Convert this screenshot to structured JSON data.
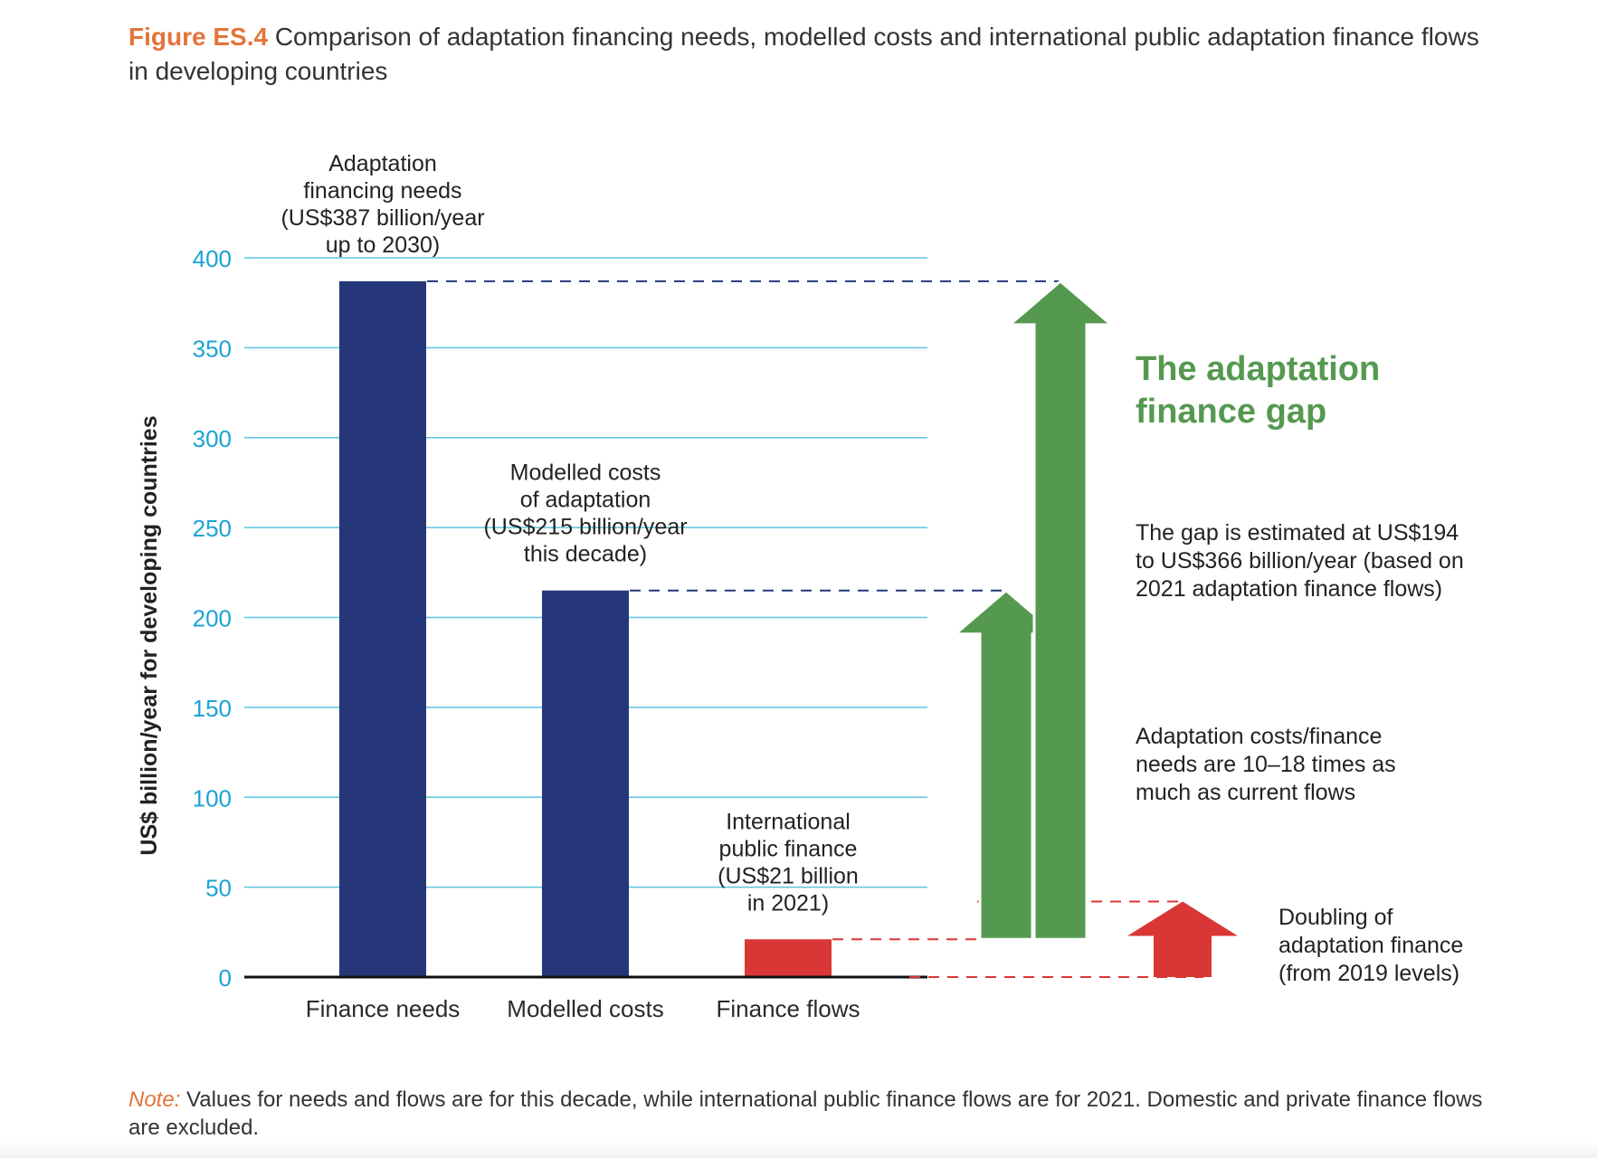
{
  "figure": {
    "label": "Figure ES.4",
    "title": "Comparison of adaptation financing needs, modelled costs and international public adaptation finance flows in developing countries"
  },
  "note": {
    "label": "Note:",
    "text": "Values for needs and flows are for this decade, while international public finance flows are for 2021. Domestic and private finance flows are excluded."
  },
  "colors": {
    "navy": "#263779",
    "red": "#d93636",
    "green": "#559950",
    "grid": "#5ec3e2",
    "tick": "#1aa3d6",
    "orange": "#e3743a"
  },
  "chart_data": {
    "type": "bar",
    "ylabel": "US$ billion/year for developing countries",
    "ylim": [
      0,
      400
    ],
    "yticks": [
      0,
      50,
      100,
      150,
      200,
      250,
      300,
      350,
      400
    ],
    "grid": true,
    "categories": [
      "Finance needs",
      "Modelled costs",
      "Finance flows"
    ],
    "values": [
      387,
      215,
      21
    ],
    "bar_colors": [
      "navy",
      "navy",
      "red"
    ],
    "bar_labels": [
      [
        "Adaptation",
        "financing needs",
        "(US$387 billion/year",
        "up to 2030)"
      ],
      [
        "Modelled costs",
        "of adaptation",
        "(US$215 billion/year",
        "this decade)"
      ],
      [
        "International",
        "public finance",
        "(US$21 billion",
        "in 2021)"
      ]
    ],
    "gap_arrows": {
      "low": [
        21,
        215
      ],
      "high": [
        21,
        387
      ]
    },
    "doubling": {
      "from": 0,
      "to": 42,
      "label": [
        "Doubling of",
        "adaptation finance",
        "(from 2019 levels)"
      ]
    },
    "annotations": {
      "gap_title": [
        "The adaptation",
        "finance gap"
      ],
      "gap_estimate": [
        "The gap is estimated at US$194",
        "to US$366 billion/year (based on",
        "2021 adaptation finance flows)"
      ],
      "ratio": [
        "Adaptation costs/finance",
        "needs are 10–18 times as",
        "much as current flows"
      ]
    }
  }
}
